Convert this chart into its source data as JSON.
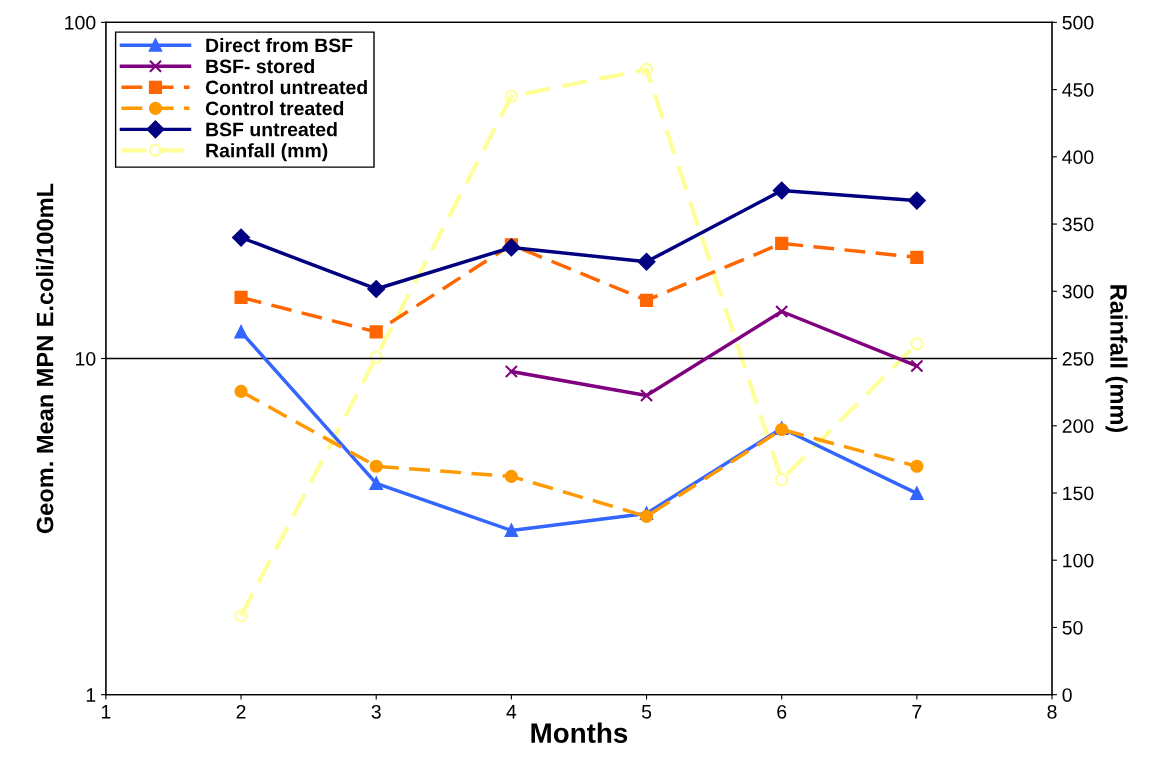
{
  "chart_data": {
    "type": "line",
    "xlabel": "Months",
    "ylabel": "Geom. Mean MPN $_{}$E.coli/100mL",
    "y2label": "Rainfall (mm)",
    "x": [
      2,
      3,
      4,
      5,
      6,
      7
    ],
    "xlim": [
      1,
      8
    ],
    "xticks": [
      1,
      2,
      3,
      4,
      5,
      6,
      7,
      8
    ],
    "log": "y",
    "ylim": [
      1,
      100
    ],
    "yticks": [
      1,
      10,
      100
    ],
    "y2lim": [
      0,
      500
    ],
    "y2ticks": [
      0,
      50,
      100,
      150,
      200,
      250,
      300,
      350,
      400,
      450,
      500
    ],
    "grid": "y",
    "legend": "top left",
    "series": [
      {
        "name": "Direct from BSF",
        "color": "#3366ff",
        "marker": "triangle",
        "line_style": "solid",
        "values": [
          12.0,
          4.25,
          3.08,
          3.46,
          6.2,
          3.97
        ]
      },
      {
        "name": "BSF- stored",
        "color": "#800080",
        "marker": "cross",
        "line_style": "solid",
        "values": [
          null,
          null,
          9.15,
          7.76,
          13.8,
          9.5
        ]
      },
      {
        "name": "Control untreated",
        "color": "#ff6600",
        "marker": "square",
        "line_style": "dashed",
        "values": [
          15.2,
          12.0,
          21.8,
          14.9,
          22.0,
          20.0
        ]
      },
      {
        "name": "Control treated",
        "color": "#ff9900",
        "marker": "circle",
        "line_style": "dashed",
        "values": [
          7.98,
          4.78,
          4.46,
          3.39,
          6.15,
          4.78
        ]
      },
      {
        "name": "BSF untreated",
        "color": "#000080",
        "marker": "diamond",
        "line_style": "solid",
        "values": [
          22.9,
          16.1,
          21.4,
          19.4,
          31.6,
          29.5
        ]
      },
      {
        "name": "Rainfall (mm)",
        "color": "#ffff99",
        "marker": "circle",
        "line_style": "dashed",
        "axis": "y2",
        "values": [
          58.7,
          251,
          445,
          465,
          160,
          261
        ]
      }
    ]
  }
}
